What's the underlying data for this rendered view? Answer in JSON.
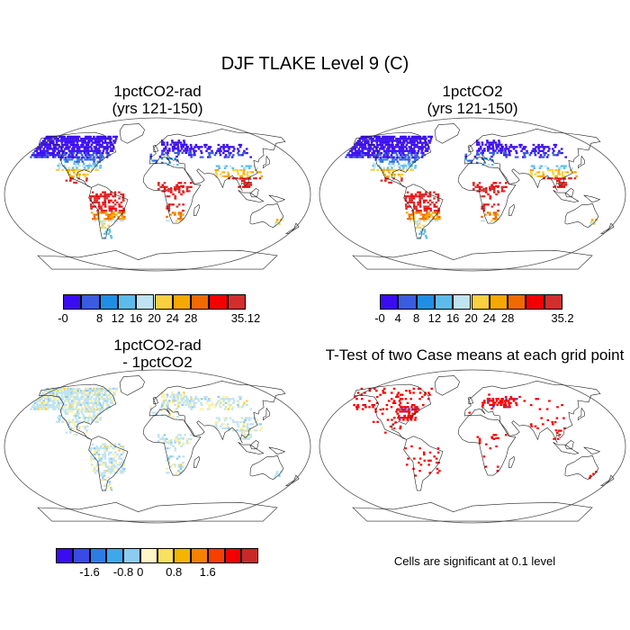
{
  "title": "DJF TLAKE Level 9 (C)",
  "panels": [
    {
      "title_line1": "1pctCO2-rad",
      "title_line2": "(yrs 121-150)",
      "kind": "value"
    },
    {
      "title_line1": "1pctCO2",
      "title_line2": "(yrs 121-150)",
      "kind": "value"
    },
    {
      "title_line1": "1pctCO2-rad",
      "title_line2": "- 1pctCO2",
      "kind": "diff"
    },
    {
      "title_line1": "T-Test of two Case means at each grid point",
      "title_line2": "",
      "kind": "ttest"
    }
  ],
  "colorbars": [
    {
      "colors": [
        "#3a0cf2",
        "#3a5ce0",
        "#1f8fe6",
        "#5bbcec",
        "#bfe3f0",
        "#f8d040",
        "#f5a800",
        "#f06a00",
        "#f50000",
        "#d22e2e"
      ],
      "labels": [
        "-0",
        "",
        "8",
        "12",
        "16",
        "20",
        "24",
        "28",
        "",
        "35.12"
      ]
    },
    {
      "colors": [
        "#3a0cf2",
        "#3a5ce0",
        "#1f8fe6",
        "#5bbcec",
        "#bfe3f0",
        "#f8d040",
        "#f5a800",
        "#f06a00",
        "#f50000",
        "#d22e2e"
      ],
      "labels": [
        "-0",
        "4",
        "8",
        "12",
        "16",
        "20",
        "24",
        "28",
        "",
        "35.2"
      ]
    },
    {
      "colors": [
        "#3a0cf2",
        "#3a4ae4",
        "#2d7ce6",
        "#3ea8ec",
        "#8ecbf0",
        "#fff5c8",
        "#f8e060",
        "#f5b400",
        "#f58200",
        "#f54000",
        "#f50000",
        "#c82828"
      ],
      "labels": [
        "-1.6",
        "-0.8",
        "0",
        "0.8",
        "1.6"
      ]
    }
  ],
  "note": "Cells are significant at 0.1 level"
}
